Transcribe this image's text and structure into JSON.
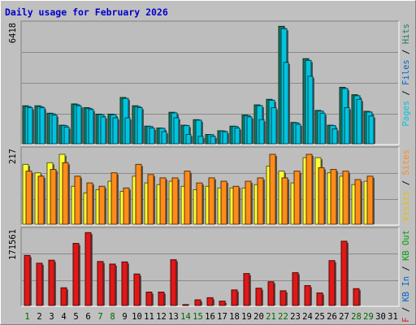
{
  "chart_data": {
    "type": "bar",
    "title": "Daily usage for February 2026",
    "categories": [
      "1",
      "2",
      "3",
      "4",
      "5",
      "6",
      "7",
      "8",
      "9",
      "10",
      "11",
      "12",
      "13",
      "14",
      "15",
      "16",
      "17",
      "18",
      "19",
      "20",
      "21",
      "22",
      "23",
      "24",
      "25",
      "26",
      "27",
      "28",
      "29",
      "30",
      "31"
    ],
    "weekend_days": [
      "1",
      "7",
      "8",
      "14",
      "15",
      "21",
      "22",
      "28",
      "29"
    ],
    "colors": {
      "background": "#c0c0c0",
      "plot_bg": "#bdbdbd",
      "title": "#0000cc",
      "weekday_label": "#000000",
      "weekend_label": "#006600",
      "hits": "#1a7a5e",
      "files": "#00c4e0",
      "pages": "#00a8c8",
      "visits": "#ffff33",
      "sites": "#ff8c1a",
      "kb_f": "#e01818"
    },
    "panels": [
      {
        "name": "top",
        "ymax_label": "6418",
        "ymax": 6418,
        "legend_right": [
          {
            "text": "Pages",
            "color": "#00c4e0"
          },
          {
            "text": " / ",
            "color": "#000000"
          },
          {
            "text": "Files",
            "color": "#0066cc"
          },
          {
            "text": " / ",
            "color": "#000000"
          },
          {
            "text": "Hits",
            "color": "#1a7a5e"
          }
        ],
        "series": [
          {
            "name": "Hits",
            "values": [
              2100,
              2100,
              1700,
              1050,
              2200,
              2000,
              1650,
              1650,
              2550,
              2100,
              1000,
              900,
              1750,
              1050,
              1350,
              550,
              750,
              1000,
              1600,
              2150,
              2450,
              6400,
              1200,
              4650,
              1850,
              1050,
              3100,
              2700,
              1800,
              0,
              0
            ]
          },
          {
            "name": "Files",
            "values": [
              2100,
              2100,
              1700,
              1050,
              2200,
              2000,
              1650,
              1650,
              2550,
              2100,
              1000,
              900,
              1750,
              1050,
              1350,
              550,
              750,
              1000,
              1600,
              2150,
              2450,
              6400,
              1200,
              4650,
              1850,
              1050,
              3100,
              2700,
              1800,
              0,
              0
            ]
          },
          {
            "name": "Pages",
            "values": [
              2000,
              2000,
              1600,
              950,
              2100,
              1900,
              1500,
              1450,
              1450,
              2000,
              900,
              700,
              1450,
              550,
              450,
              450,
              700,
              900,
              1500,
              1350,
              2000,
              4450,
              1100,
              3700,
              1700,
              850,
              2000,
              2450,
              1550,
              0,
              0
            ]
          }
        ]
      },
      {
        "name": "middle",
        "ymax_label": "217",
        "ymax": 217,
        "legend_right": [
          {
            "text": "Visits",
            "color": "#e0c000"
          },
          {
            "text": " / ",
            "color": "#000000"
          },
          {
            "text": "Sites",
            "color": "#ff8c1a"
          }
        ],
        "series": [
          {
            "name": "Visits",
            "values": [
              180,
              155,
              185,
              210,
              115,
              95,
              105,
              130,
              100,
              145,
              125,
              120,
              130,
              115,
              105,
              115,
              110,
              110,
              110,
              120,
              175,
              160,
              125,
              200,
              200,
              155,
              145,
              120,
              130,
              0,
              0
            ]
          },
          {
            "name": "Sites",
            "values": [
              160,
              145,
              165,
              185,
              145,
              125,
              115,
              155,
              110,
              180,
              150,
              140,
              140,
              160,
              125,
              140,
              130,
              115,
              130,
              140,
              210,
              140,
              160,
              210,
              170,
              165,
              160,
              135,
              145,
              0,
              0
            ]
          }
        ]
      },
      {
        "name": "bottom",
        "ymax_label": "171561",
        "ymax": 171561,
        "legend_right": [
          {
            "text": "KB F",
            "color": "#e01818"
          },
          {
            "text": " / ",
            "color": "#000000"
          },
          {
            "text": "KB In",
            "color": "#0066cc"
          },
          {
            "text": " / ",
            "color": "#000000"
          },
          {
            "text": "KB Out",
            "color": "#00a000"
          }
        ],
        "series": [
          {
            "name": "KB F",
            "values": [
              118000,
              100000,
              107000,
              43000,
              146000,
              171000,
              104000,
              98000,
              103000,
              75000,
              33000,
              33000,
              108000,
              4000,
              15000,
              20000,
              12000,
              38000,
              76000,
              42000,
              57000,
              36000,
              78000,
              48000,
              31000,
              106000,
              151000,
              41000,
              0,
              0,
              0
            ]
          }
        ]
      }
    ]
  }
}
